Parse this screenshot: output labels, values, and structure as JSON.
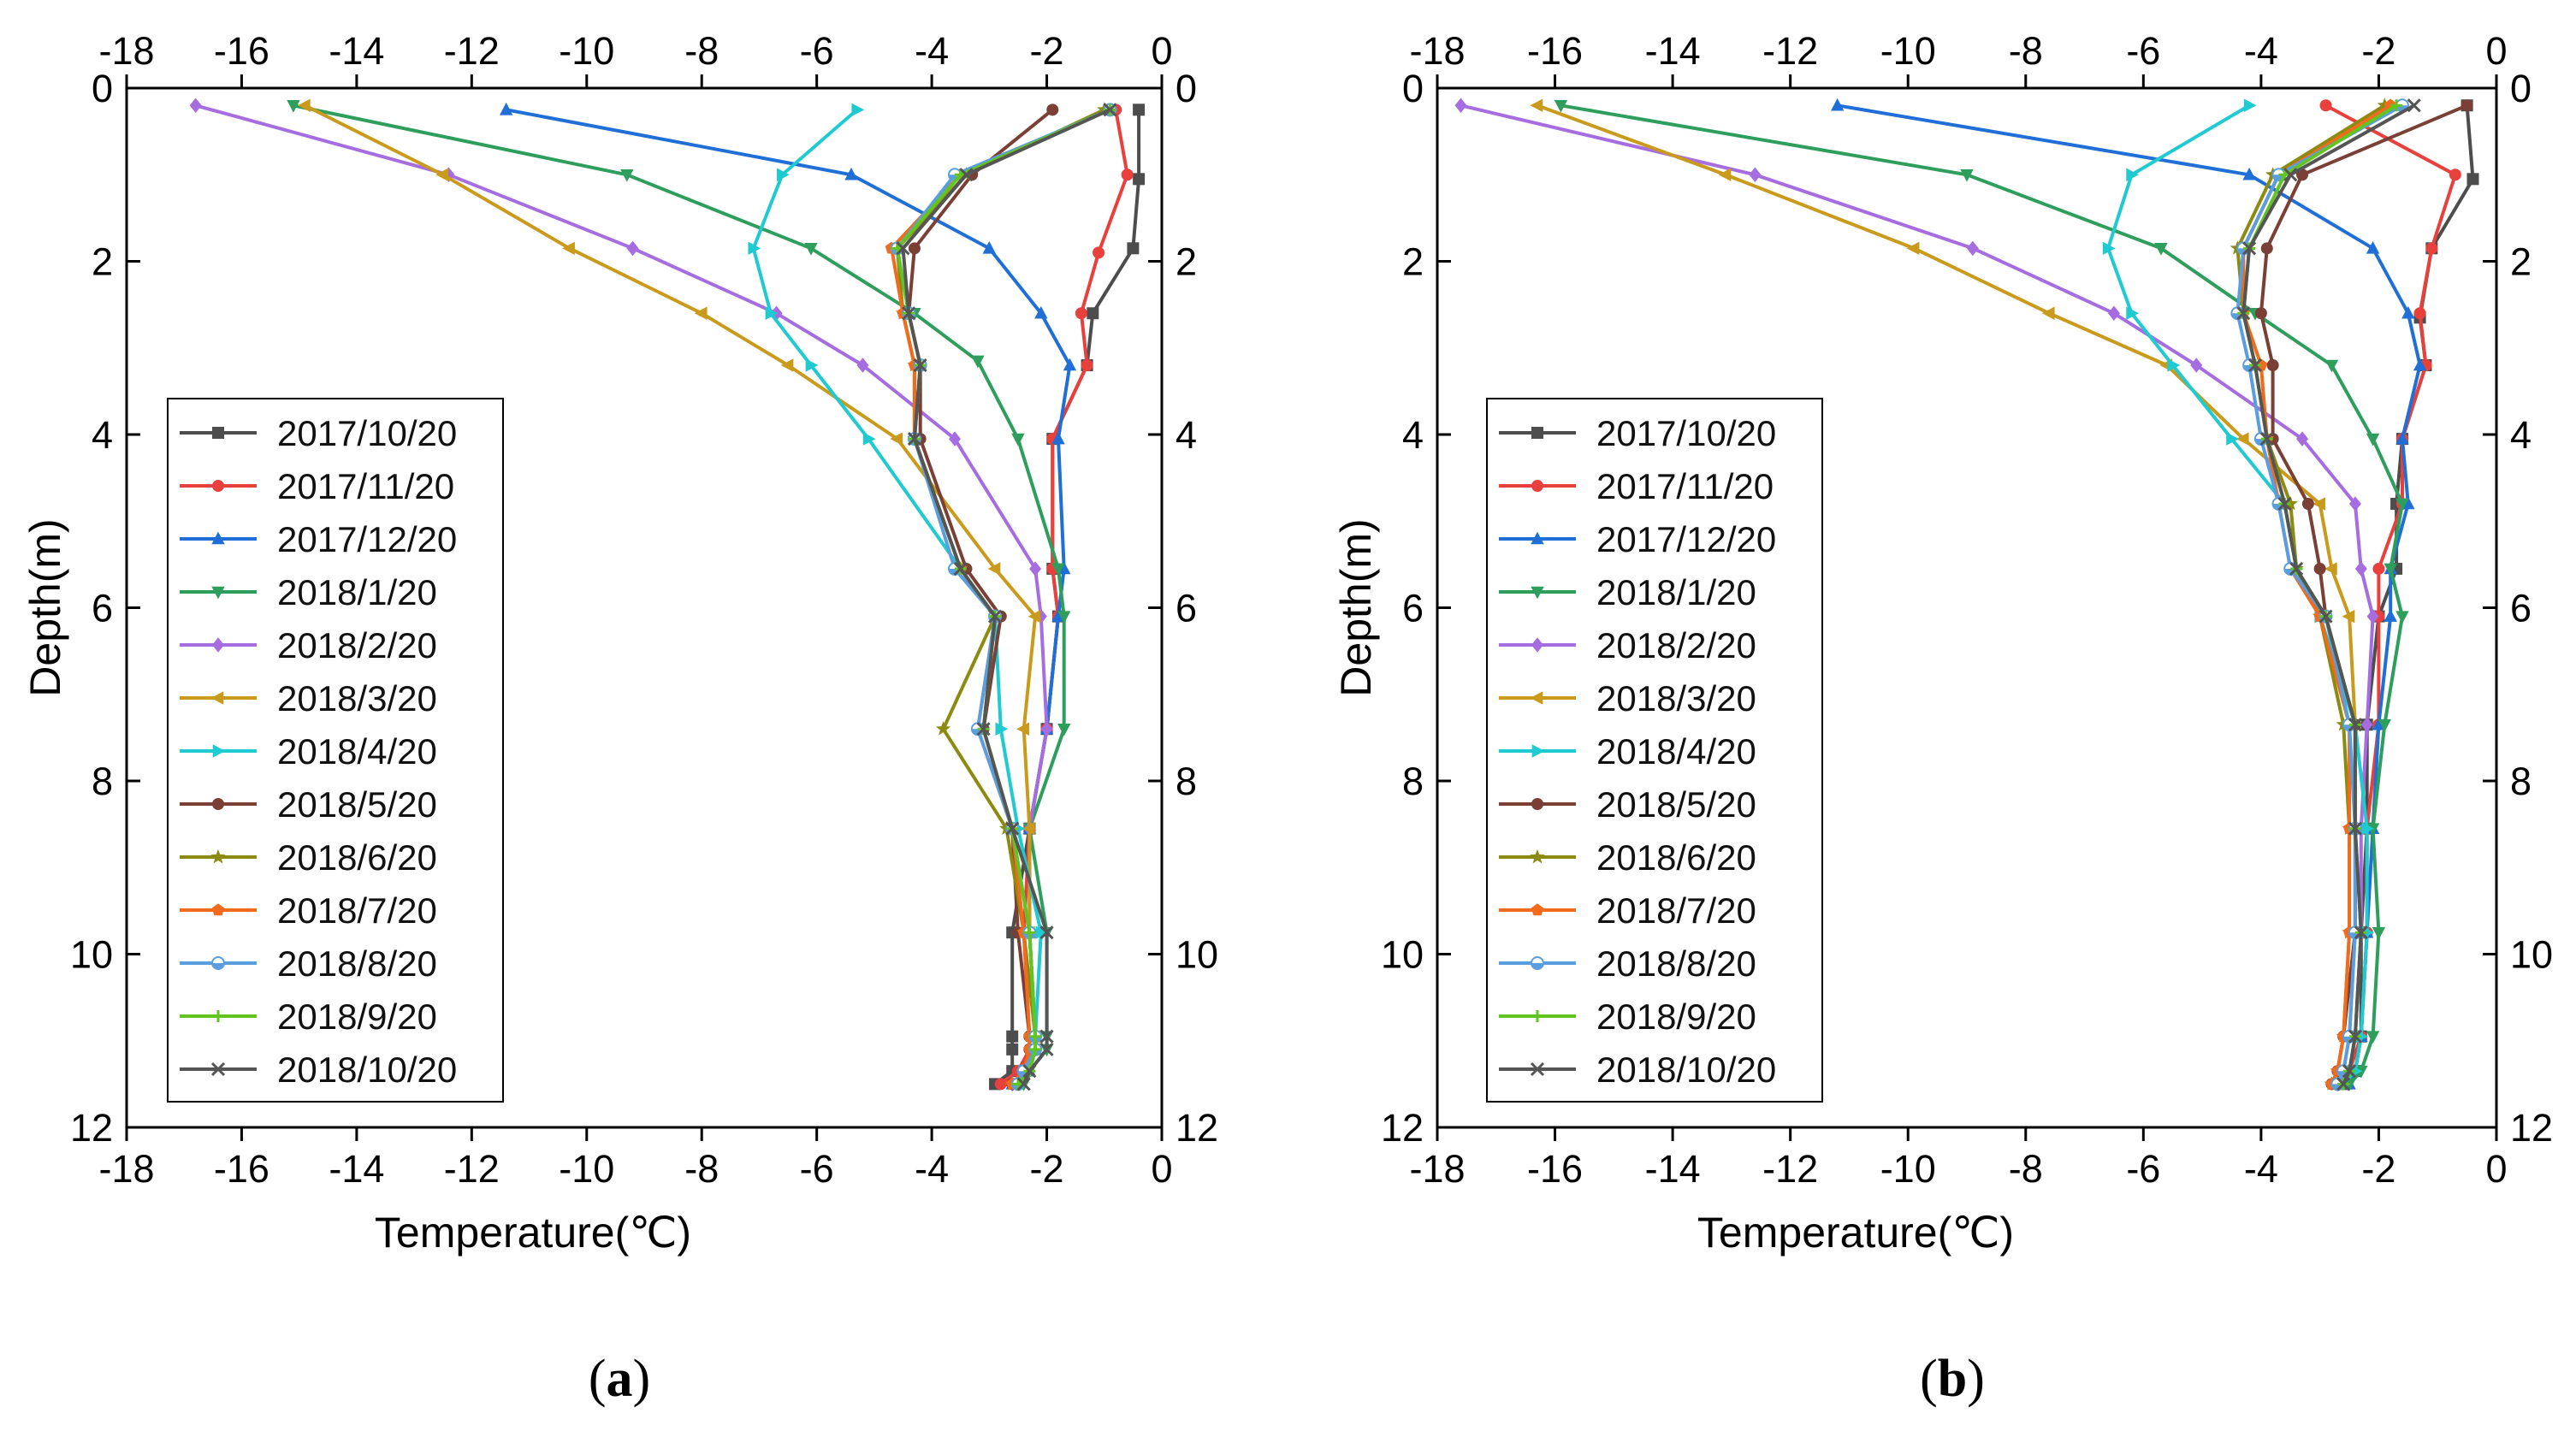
{
  "chart_data": [
    {
      "panel": "(a)",
      "panel_letter": "a",
      "type": "line",
      "xlabel": "Temperature(℃)",
      "ylabel": "Depth(m)",
      "xlim": [
        -18,
        0
      ],
      "ylim": [
        12,
        0
      ],
      "xticks": [
        "-18",
        "-16",
        "-14",
        "-12",
        "-10",
        "-8",
        "-6",
        "-4",
        "-2",
        "0"
      ],
      "yticks": [
        "0",
        "2",
        "4",
        "6",
        "8",
        "10",
        "12"
      ],
      "grid": false,
      "legend_position": "left",
      "series": [
        {
          "name": "2017/10/20",
          "color": "#4d4d4d",
          "marker": "square",
          "x": [
            -0.4,
            -0.4,
            -0.5,
            -1.2,
            -1.3,
            -1.9,
            -1.9,
            -1.8,
            -2.0,
            -2.3,
            -2.6,
            -2.6,
            -2.6,
            -2.6,
            -2.9
          ],
          "y": [
            0.25,
            1.05,
            1.85,
            2.6,
            3.2,
            4.05,
            5.55,
            6.1,
            7.4,
            8.55,
            9.75,
            10.95,
            11.1,
            11.35,
            11.5
          ]
        },
        {
          "name": "2017/11/20",
          "color": "#e8413d",
          "marker": "circle",
          "x": [
            -0.8,
            -0.6,
            -1.1,
            -1.4,
            -1.3,
            -1.9,
            -1.9,
            -1.8,
            -2.0,
            -2.3,
            -2.4,
            -2.3,
            -2.3,
            -2.5,
            -2.8
          ],
          "y": [
            0.25,
            1.0,
            1.9,
            2.6,
            3.2,
            4.05,
            5.55,
            6.1,
            7.4,
            8.55,
            9.75,
            10.95,
            11.1,
            11.35,
            11.5
          ]
        },
        {
          "name": "2017/12/20",
          "color": "#1f6fd6",
          "marker": "triangle-up",
          "x": [
            -11.4,
            -5.4,
            -3.0,
            -2.1,
            -1.6,
            -1.8,
            -1.7,
            -1.8,
            -2.0,
            -2.3,
            -2.3,
            -2.2,
            -2.2,
            -2.3,
            -2.6
          ],
          "y": [
            0.25,
            1.0,
            1.85,
            2.6,
            3.2,
            4.05,
            5.55,
            6.1,
            7.4,
            8.55,
            9.75,
            10.95,
            11.1,
            11.35,
            11.5
          ]
        },
        {
          "name": "2018/1/20",
          "color": "#2e9e5c",
          "marker": "triangle-down",
          "x": [
            -15.1,
            -9.3,
            -6.1,
            -4.3,
            -3.2,
            -2.5,
            -1.8,
            -1.7,
            -1.7,
            -2.3,
            -2.0,
            -2.0,
            -2.0,
            -2.3,
            -2.4
          ],
          "y": [
            0.2,
            1.0,
            1.85,
            2.6,
            3.15,
            4.05,
            5.55,
            6.1,
            7.4,
            8.55,
            9.75,
            10.95,
            11.1,
            11.35,
            11.5
          ]
        },
        {
          "name": "2018/2/20",
          "color": "#a56de0",
          "marker": "diamond",
          "x": [
            -16.8,
            -12.4,
            -9.2,
            -6.7,
            -5.2,
            -3.6,
            -2.2,
            -2.1,
            -2.0,
            -2.3,
            -2.3,
            -2.2,
            -2.2,
            -2.4,
            -2.6
          ],
          "y": [
            0.2,
            1.0,
            1.85,
            2.6,
            3.2,
            4.05,
            5.55,
            6.1,
            7.4,
            8.55,
            9.75,
            10.95,
            11.1,
            11.35,
            11.5
          ]
        },
        {
          "name": "2018/3/20",
          "color": "#c99a1b",
          "marker": "triangle-left",
          "x": [
            -14.9,
            -12.5,
            -10.3,
            -8.0,
            -6.5,
            -4.6,
            -2.9,
            -2.2,
            -2.4,
            -2.3,
            -2.3,
            -2.2,
            -2.2,
            -2.4,
            -2.6
          ],
          "y": [
            0.2,
            1.0,
            1.85,
            2.6,
            3.2,
            4.05,
            5.55,
            6.1,
            7.4,
            8.55,
            9.75,
            10.95,
            11.1,
            11.35,
            11.5
          ]
        },
        {
          "name": "2018/4/20",
          "color": "#1fcad0",
          "marker": "triangle-right",
          "x": [
            -5.3,
            -6.6,
            -7.1,
            -6.8,
            -6.1,
            -5.1,
            -3.5,
            -2.9,
            -2.8,
            -2.5,
            -2.1,
            -2.2,
            -2.2,
            -2.4,
            -2.5
          ],
          "y": [
            0.25,
            1.0,
            1.85,
            2.6,
            3.2,
            4.05,
            5.55,
            6.1,
            7.4,
            8.55,
            9.75,
            10.95,
            11.1,
            11.35,
            11.5
          ]
        },
        {
          "name": "2018/5/20",
          "color": "#7a3f35",
          "marker": "circle",
          "x": [
            -1.9,
            -3.3,
            -4.3,
            -4.4,
            -4.2,
            -4.2,
            -3.4,
            -2.8,
            -3.1,
            -2.6,
            -2.5,
            -2.3,
            -2.3,
            -2.4,
            -2.6
          ],
          "y": [
            0.25,
            1.0,
            1.85,
            2.6,
            3.2,
            4.05,
            5.55,
            6.1,
            7.4,
            8.55,
            9.75,
            10.95,
            11.1,
            11.35,
            11.5
          ]
        },
        {
          "name": "2018/6/20",
          "color": "#8b8b12",
          "marker": "star",
          "x": [
            -1.0,
            -3.4,
            -4.6,
            -4.5,
            -4.3,
            -4.3,
            -3.5,
            -2.9,
            -3.8,
            -2.7,
            -2.4,
            -2.2,
            -2.2,
            -2.4,
            -2.6
          ],
          "y": [
            0.25,
            1.0,
            1.85,
            2.6,
            3.2,
            4.05,
            5.55,
            6.1,
            7.4,
            8.55,
            9.75,
            10.95,
            11.1,
            11.35,
            11.5
          ]
        },
        {
          "name": "2018/7/20",
          "color": "#f26b1d",
          "marker": "pentagon",
          "x": [
            -0.9,
            -3.5,
            -4.7,
            -4.5,
            -4.3,
            -4.3,
            -3.5,
            -2.9,
            -3.2,
            -2.6,
            -2.4,
            -2.3,
            -2.3,
            -2.4,
            -2.6
          ],
          "y": [
            0.25,
            1.0,
            1.85,
            2.6,
            3.2,
            4.05,
            5.55,
            6.1,
            7.4,
            8.55,
            9.75,
            10.95,
            11.1,
            11.35,
            11.5
          ]
        },
        {
          "name": "2018/8/20",
          "color": "#5b9ee0",
          "marker": "half-circle",
          "x": [
            -0.9,
            -3.6,
            -4.6,
            -4.4,
            -4.2,
            -4.3,
            -3.6,
            -2.9,
            -3.2,
            -2.6,
            -2.3,
            -2.2,
            -2.2,
            -2.4,
            -2.5
          ],
          "y": [
            0.25,
            1.0,
            1.85,
            2.6,
            3.2,
            4.05,
            5.55,
            6.1,
            7.4,
            8.55,
            9.75,
            10.95,
            11.1,
            11.35,
            11.5
          ]
        },
        {
          "name": "2018/9/20",
          "color": "#62c51f",
          "marker": "plus",
          "x": [
            -0.9,
            -3.5,
            -4.6,
            -4.4,
            -4.2,
            -4.3,
            -3.5,
            -2.9,
            -3.1,
            -2.6,
            -2.3,
            -2.2,
            -2.2,
            -2.3,
            -2.5
          ],
          "y": [
            0.25,
            1.0,
            1.85,
            2.6,
            3.2,
            4.05,
            5.55,
            6.1,
            7.4,
            8.55,
            9.75,
            10.95,
            11.1,
            11.35,
            11.5
          ]
        },
        {
          "name": "2018/10/20",
          "color": "#555555",
          "marker": "x",
          "x": [
            -0.9,
            -3.4,
            -4.5,
            -4.4,
            -4.2,
            -4.3,
            -3.5,
            -2.9,
            -3.1,
            -2.6,
            -2.0,
            -2.0,
            -2.0,
            -2.3,
            -2.4
          ],
          "y": [
            0.25,
            1.0,
            1.85,
            2.6,
            3.2,
            4.05,
            5.55,
            6.1,
            7.4,
            8.55,
            9.75,
            10.95,
            11.1,
            11.35,
            11.5
          ]
        }
      ]
    },
    {
      "panel": "(b)",
      "panel_letter": "b",
      "type": "line",
      "xlabel": "Temperature(℃)",
      "ylabel": "Depth(m)",
      "xlim": [
        -18,
        0
      ],
      "ylim": [
        12,
        0
      ],
      "xticks": [
        "-18",
        "-16",
        "-14",
        "-12",
        "-10",
        "-8",
        "-6",
        "-4",
        "-2",
        "0"
      ],
      "yticks": [
        "0",
        "2",
        "4",
        "6",
        "8",
        "10",
        "12"
      ],
      "grid": false,
      "legend_position": "left",
      "series": [
        {
          "name": "2017/10/20",
          "color": "#4d4d4d",
          "marker": "square",
          "x": [
            -0.5,
            -0.4,
            -1.1,
            -1.3,
            -1.2,
            -1.6,
            -1.7,
            -1.7,
            -2.0,
            -2.2,
            -2.2,
            -2.3,
            -2.3,
            -2.4,
            -2.6
          ],
          "y": [
            0.2,
            1.05,
            1.85,
            2.65,
            3.2,
            4.05,
            4.8,
            5.55,
            6.1,
            7.35,
            8.55,
            9.75,
            10.95,
            11.35,
            11.5
          ]
        },
        {
          "name": "2017/11/20",
          "color": "#e8413d",
          "marker": "circle",
          "x": [
            -2.9,
            -0.7,
            -1.1,
            -1.3,
            -1.2,
            -1.6,
            -1.6,
            -2.0,
            -2.0,
            -2.0,
            -2.2,
            -2.2,
            -2.3,
            -2.5,
            -2.7
          ],
          "y": [
            0.2,
            1.0,
            1.85,
            2.6,
            3.2,
            4.05,
            4.8,
            5.55,
            6.1,
            7.35,
            8.55,
            9.75,
            10.95,
            11.35,
            11.5
          ]
        },
        {
          "name": "2017/12/20",
          "color": "#1f6fd6",
          "marker": "triangle-up",
          "x": [
            -11.2,
            -4.2,
            -2.1,
            -1.5,
            -1.3,
            -1.6,
            -1.5,
            -1.8,
            -1.8,
            -2.0,
            -2.1,
            -2.2,
            -2.3,
            -2.4,
            -2.5
          ],
          "y": [
            0.2,
            1.0,
            1.85,
            2.6,
            3.2,
            4.05,
            4.8,
            5.55,
            6.1,
            7.35,
            8.55,
            9.75,
            10.95,
            11.35,
            11.5
          ]
        },
        {
          "name": "2018/1/20",
          "color": "#2e9e5c",
          "marker": "triangle-down",
          "x": [
            -15.9,
            -9.0,
            -5.7,
            -4.1,
            -2.8,
            -2.1,
            -1.6,
            -1.8,
            -1.6,
            -1.9,
            -2.1,
            -2.0,
            -2.1,
            -2.3,
            -2.5
          ],
          "y": [
            0.2,
            1.0,
            1.85,
            2.6,
            3.2,
            4.05,
            4.8,
            5.55,
            6.1,
            7.35,
            8.55,
            9.75,
            10.95,
            11.35,
            11.5
          ]
        },
        {
          "name": "2018/2/20",
          "color": "#a56de0",
          "marker": "diamond",
          "x": [
            -17.6,
            -12.6,
            -8.9,
            -6.5,
            -5.1,
            -3.3,
            -2.4,
            -2.3,
            -2.1,
            -2.2,
            -2.3,
            -2.3,
            -2.4,
            -2.5,
            -2.7
          ],
          "y": [
            0.2,
            1.0,
            1.85,
            2.6,
            3.2,
            4.05,
            4.8,
            5.55,
            6.1,
            7.35,
            8.55,
            9.75,
            10.95,
            11.35,
            11.5
          ]
        },
        {
          "name": "2018/3/20",
          "color": "#c99a1b",
          "marker": "triangle-left",
          "x": [
            -16.3,
            -13.1,
            -9.9,
            -7.6,
            -5.6,
            -4.3,
            -3.0,
            -2.8,
            -2.5,
            -2.4,
            -2.4,
            -2.4,
            -2.5,
            -2.6,
            -2.7
          ],
          "y": [
            0.2,
            1.0,
            1.85,
            2.6,
            3.2,
            4.05,
            4.8,
            5.55,
            6.1,
            7.35,
            8.55,
            9.75,
            10.95,
            11.35,
            11.5
          ]
        },
        {
          "name": "2018/4/20",
          "color": "#1fcad0",
          "marker": "triangle-right",
          "x": [
            -4.2,
            -6.2,
            -6.6,
            -6.2,
            -5.5,
            -4.5,
            -3.6,
            -3.4,
            -3.0,
            -2.4,
            -2.2,
            -2.2,
            -2.3,
            -2.4,
            -2.6
          ],
          "y": [
            0.2,
            1.0,
            1.85,
            2.6,
            3.2,
            4.05,
            4.8,
            5.55,
            6.1,
            7.35,
            8.55,
            9.75,
            10.95,
            11.35,
            11.5
          ]
        },
        {
          "name": "2018/5/20",
          "color": "#7a3f35",
          "marker": "circle",
          "x": [
            -0.5,
            -3.3,
            -3.9,
            -4.0,
            -3.8,
            -3.8,
            -3.2,
            -3.0,
            -2.9,
            -2.4,
            -2.4,
            -2.4,
            -2.6,
            -2.7,
            -2.8
          ],
          "y": [
            0.2,
            1.0,
            1.85,
            2.6,
            3.2,
            4.05,
            4.8,
            5.55,
            6.1,
            7.35,
            8.55,
            9.75,
            10.95,
            11.35,
            11.5
          ]
        },
        {
          "name": "2018/6/20",
          "color": "#8b8b12",
          "marker": "star",
          "x": [
            -1.9,
            -3.8,
            -4.4,
            -4.3,
            -4.1,
            -3.9,
            -3.5,
            -3.4,
            -3.0,
            -2.6,
            -2.5,
            -2.5,
            -2.6,
            -2.7,
            -2.8
          ],
          "y": [
            0.2,
            1.0,
            1.85,
            2.6,
            3.2,
            4.05,
            4.8,
            5.55,
            6.1,
            7.35,
            8.55,
            9.75,
            10.95,
            11.35,
            11.5
          ]
        },
        {
          "name": "2018/7/20",
          "color": "#f26b1d",
          "marker": "pentagon",
          "x": [
            -1.8,
            -3.7,
            -4.3,
            -4.3,
            -4.0,
            -3.9,
            -3.7,
            -3.5,
            -3.0,
            -2.5,
            -2.5,
            -2.5,
            -2.6,
            -2.7,
            -2.8
          ],
          "y": [
            0.2,
            1.0,
            1.85,
            2.6,
            3.2,
            4.05,
            4.8,
            5.55,
            6.1,
            7.35,
            8.55,
            9.75,
            10.95,
            11.35,
            11.5
          ]
        },
        {
          "name": "2018/8/20",
          "color": "#5b9ee0",
          "marker": "half-circle",
          "x": [
            -1.6,
            -3.7,
            -4.3,
            -4.4,
            -4.2,
            -4.0,
            -3.7,
            -3.5,
            -2.9,
            -2.5,
            -2.4,
            -2.4,
            -2.5,
            -2.6,
            -2.7
          ],
          "y": [
            0.2,
            1.0,
            1.85,
            2.6,
            3.2,
            4.05,
            4.8,
            5.55,
            6.1,
            7.35,
            8.55,
            9.75,
            10.95,
            11.35,
            11.5
          ]
        },
        {
          "name": "2018/9/20",
          "color": "#62c51f",
          "marker": "plus",
          "x": [
            -1.7,
            -3.6,
            -4.2,
            -4.3,
            -4.1,
            -3.9,
            -3.6,
            -3.4,
            -2.9,
            -2.4,
            -2.4,
            -2.3,
            -2.4,
            -2.5,
            -2.6
          ],
          "y": [
            0.2,
            1.0,
            1.85,
            2.6,
            3.2,
            4.05,
            4.8,
            5.55,
            6.1,
            7.35,
            8.55,
            9.75,
            10.95,
            11.35,
            11.5
          ]
        },
        {
          "name": "2018/10/20",
          "color": "#555555",
          "marker": "x",
          "x": [
            -1.4,
            -3.5,
            -4.2,
            -4.3,
            -4.1,
            -3.9,
            -3.6,
            -3.4,
            -2.9,
            -2.4,
            -2.4,
            -2.3,
            -2.4,
            -2.5,
            -2.6
          ],
          "y": [
            0.2,
            1.0,
            1.85,
            2.6,
            3.2,
            4.05,
            4.8,
            5.55,
            6.1,
            7.35,
            8.55,
            9.75,
            10.95,
            11.35,
            11.5
          ]
        }
      ]
    }
  ]
}
